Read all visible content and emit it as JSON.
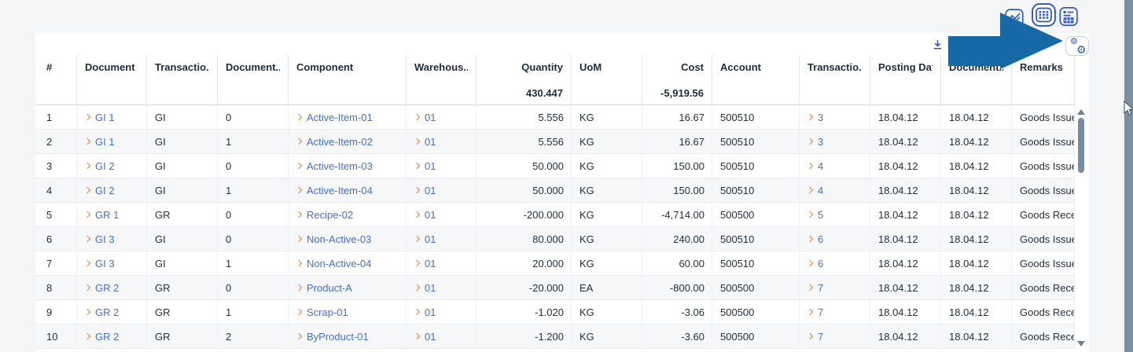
{
  "toolbar": {
    "download_label": "D"
  },
  "view_switcher": {
    "buttons": [
      {
        "name": "chart-view",
        "icon": "line-chart-icon",
        "selected": false
      },
      {
        "name": "grid-view",
        "icon": "grid-icon",
        "selected": true
      },
      {
        "name": "chart-table-view",
        "icon": "chart-table-icon",
        "selected": false
      }
    ],
    "settings_icon": "gears-icon",
    "download_icon": "download-icon"
  },
  "colors": {
    "accent_blue": "#2b52c9",
    "link_blue": "#4470cc",
    "chevron_orange": "#e8833c",
    "annotation_arrow_blue": "#1769a6",
    "scrollbar_slate": "#7e8ea2"
  },
  "table": {
    "columns": [
      {
        "key": "num",
        "label": "#",
        "align": "left",
        "link": false
      },
      {
        "key": "document",
        "label": "Document",
        "align": "left",
        "link": true
      },
      {
        "key": "trans_type",
        "label": "Transactio...",
        "align": "left",
        "link": false
      },
      {
        "key": "doc_line",
        "label": "Document...",
        "align": "left",
        "link": false
      },
      {
        "key": "component",
        "label": "Component",
        "align": "left",
        "link": true
      },
      {
        "key": "warehouse",
        "label": "Warehous...",
        "align": "left",
        "link": true
      },
      {
        "key": "quantity",
        "label": "Quantity",
        "align": "right",
        "link": false,
        "total": "430.447"
      },
      {
        "key": "uom",
        "label": "UoM",
        "align": "left",
        "link": false
      },
      {
        "key": "cost",
        "label": "Cost",
        "align": "right",
        "link": false,
        "total": "-5,919.56"
      },
      {
        "key": "account",
        "label": "Account",
        "align": "left",
        "link": false
      },
      {
        "key": "transaction",
        "label": "Transactio...",
        "align": "left",
        "link": true
      },
      {
        "key": "posting_date",
        "label": "Posting Date",
        "align": "left",
        "link": false
      },
      {
        "key": "document_date",
        "label": "Document...",
        "align": "left",
        "link": false
      },
      {
        "key": "remarks",
        "label": "Remarks",
        "align": "left",
        "link": false
      }
    ],
    "rows": [
      {
        "num": "1",
        "document": "GI 1",
        "trans_type": "GI",
        "doc_line": "0",
        "component": "Active-Item-01",
        "warehouse": "01",
        "quantity": "5.556",
        "uom": "KG",
        "cost": "16.67",
        "account": "500510",
        "transaction": "3",
        "posting_date": "18.04.12",
        "document_date": "18.04.12",
        "remarks": "Goods Issue"
      },
      {
        "num": "2",
        "document": "GI 1",
        "trans_type": "GI",
        "doc_line": "1",
        "component": "Active-Item-02",
        "warehouse": "01",
        "quantity": "5.556",
        "uom": "KG",
        "cost": "16.67",
        "account": "500510",
        "transaction": "3",
        "posting_date": "18.04.12",
        "document_date": "18.04.12",
        "remarks": "Goods Issue"
      },
      {
        "num": "3",
        "document": "GI 2",
        "trans_type": "GI",
        "doc_line": "0",
        "component": "Active-Item-03",
        "warehouse": "01",
        "quantity": "50.000",
        "uom": "KG",
        "cost": "150.00",
        "account": "500510",
        "transaction": "4",
        "posting_date": "18.04.12",
        "document_date": "18.04.12",
        "remarks": "Goods Issue"
      },
      {
        "num": "4",
        "document": "GI 2",
        "trans_type": "GI",
        "doc_line": "1",
        "component": "Active-Item-04",
        "warehouse": "01",
        "quantity": "50.000",
        "uom": "KG",
        "cost": "150.00",
        "account": "500510",
        "transaction": "4",
        "posting_date": "18.04.12",
        "document_date": "18.04.12",
        "remarks": "Goods Issue"
      },
      {
        "num": "5",
        "document": "GR 1",
        "trans_type": "GR",
        "doc_line": "0",
        "component": "Recipe-02",
        "warehouse": "01",
        "quantity": "-200.000",
        "uom": "KG",
        "cost": "-4,714.00",
        "account": "500500",
        "transaction": "5",
        "posting_date": "18.04.12",
        "document_date": "18.04.12",
        "remarks": "Goods Rece"
      },
      {
        "num": "6",
        "document": "GI 3",
        "trans_type": "GI",
        "doc_line": "0",
        "component": "Non-Active-03",
        "warehouse": "01",
        "quantity": "80.000",
        "uom": "KG",
        "cost": "240.00",
        "account": "500510",
        "transaction": "6",
        "posting_date": "18.04.12",
        "document_date": "18.04.12",
        "remarks": "Goods Issue"
      },
      {
        "num": "7",
        "document": "GI 3",
        "trans_type": "GI",
        "doc_line": "1",
        "component": "Non-Active-04",
        "warehouse": "01",
        "quantity": "20.000",
        "uom": "KG",
        "cost": "60.00",
        "account": "500510",
        "transaction": "6",
        "posting_date": "18.04.12",
        "document_date": "18.04.12",
        "remarks": "Goods Issue"
      },
      {
        "num": "8",
        "document": "GR 2",
        "trans_type": "GR",
        "doc_line": "0",
        "component": "Product-A",
        "warehouse": "01",
        "quantity": "-20.000",
        "uom": "EA",
        "cost": "-800.00",
        "account": "500500",
        "transaction": "7",
        "posting_date": "18.04.12",
        "document_date": "18.04.12",
        "remarks": "Goods Rece"
      },
      {
        "num": "9",
        "document": "GR 2",
        "trans_type": "GR",
        "doc_line": "1",
        "component": "Scrap-01",
        "warehouse": "01",
        "quantity": "-1.020",
        "uom": "KG",
        "cost": "-3.06",
        "account": "500500",
        "transaction": "7",
        "posting_date": "18.04.12",
        "document_date": "18.04.12",
        "remarks": "Goods Rece"
      },
      {
        "num": "10",
        "document": "GR 2",
        "trans_type": "GR",
        "doc_line": "2",
        "component": "ByProduct-01",
        "warehouse": "01",
        "quantity": "-1.200",
        "uom": "KG",
        "cost": "-3.60",
        "account": "500500",
        "transaction": "7",
        "posting_date": "18.04.12",
        "document_date": "18.04.12",
        "remarks": "Goods Rece"
      }
    ]
  }
}
